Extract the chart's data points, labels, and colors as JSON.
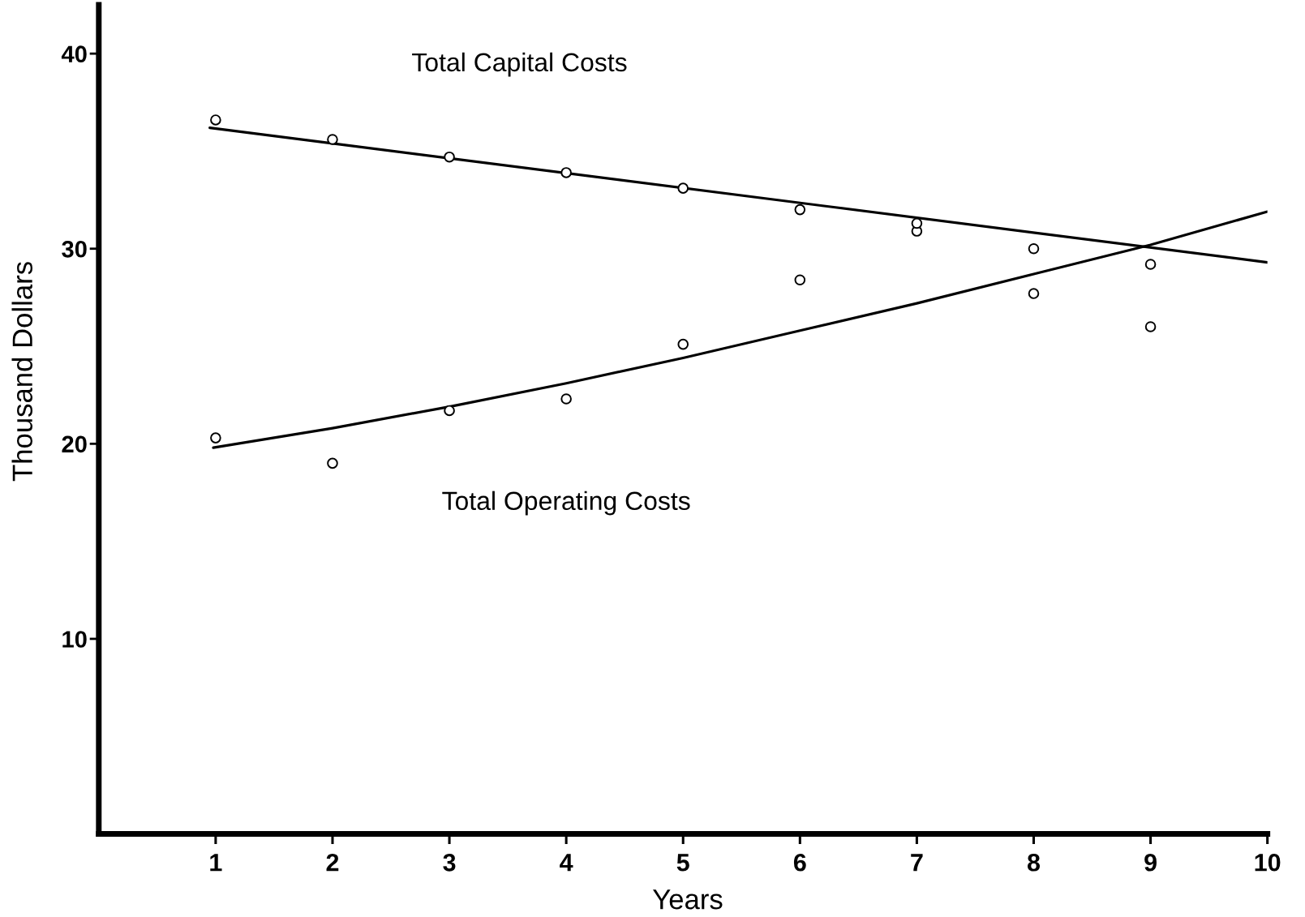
{
  "chart_data": {
    "type": "scatter",
    "xlabel": "Years",
    "ylabel": "Thousand Dollars",
    "xlim": [
      0,
      10
    ],
    "xticks": [
      1,
      2,
      3,
      4,
      5,
      6,
      7,
      8,
      9,
      10
    ],
    "ylim": [
      0,
      42.5
    ],
    "yticks": [
      10,
      20,
      30,
      40
    ],
    "series": [
      {
        "type": "line",
        "name": "Total Capital Costs",
        "marker": "none",
        "color": "#000000",
        "x": [
          0.95,
          10
        ],
        "values": [
          36.2,
          29.3
        ]
      },
      {
        "name": "Total Operating Costs",
        "marker": "circle",
        "color": "#000000",
        "x": [
          1,
          2,
          3,
          4,
          5,
          6,
          7,
          8,
          9
        ],
        "values": [
          20.3,
          19.0,
          21.7,
          22.3,
          25.1,
          28.4,
          30.9,
          27.7,
          26.0
        ]
      },
      {
        "marker": "circle",
        "color": "#000000",
        "x": [
          1,
          2,
          3,
          4,
          5,
          6,
          7,
          8,
          9
        ],
        "values": [
          36.6,
          35.6,
          34.7,
          33.9,
          33.1,
          32.0,
          31.3,
          30.0,
          29.2
        ]
      },
      {
        "type": "line",
        "marker": "none",
        "color": "#000000",
        "x": [
          0.98,
          2,
          3,
          4,
          5,
          6,
          7,
          8,
          9,
          10
        ],
        "values": [
          19.8,
          20.8,
          21.9,
          23.1,
          24.4,
          25.8,
          27.2,
          28.7,
          30.2,
          31.9
        ]
      }
    ]
  }
}
